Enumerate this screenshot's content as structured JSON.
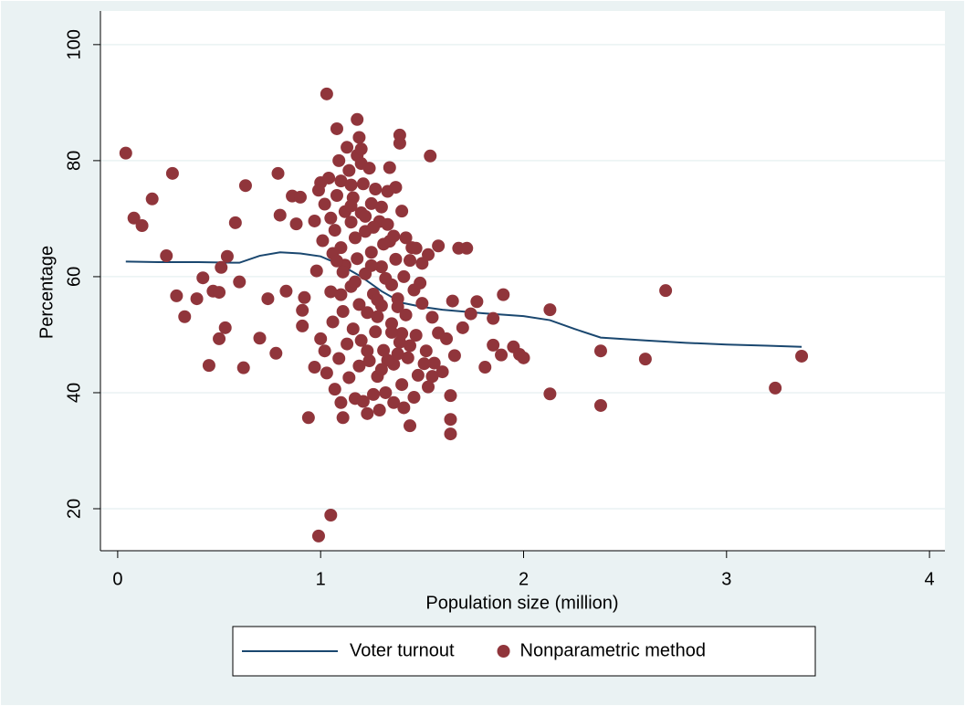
{
  "chart_data": {
    "type": "scatter",
    "xlabel": "Population size (million)",
    "ylabel": "Percentage",
    "xlim": [
      -0.085,
      4.076
    ],
    "ylim": [
      12.76,
      105.8
    ],
    "xticks": [
      0,
      1,
      2,
      3,
      4
    ],
    "yticks": [
      20,
      40,
      60,
      80,
      100
    ],
    "grid": true,
    "legend": "bottom",
    "series": [
      {
        "name": "Voter turnout",
        "type": "line",
        "color": "#1a476f",
        "x": [
          0.04,
          0.2,
          0.4,
          0.6,
          0.7,
          0.8,
          0.9,
          1.0,
          1.1,
          1.2,
          1.3,
          1.4,
          1.5,
          1.6,
          1.8,
          2.0,
          2.13,
          2.25,
          2.38,
          2.6,
          2.8,
          3.0,
          3.2,
          3.37
        ],
        "values": [
          62.6,
          62.5,
          62.5,
          62.4,
          63.6,
          64.2,
          64.0,
          63.5,
          62,
          60,
          57.5,
          55.5,
          54.8,
          54.3,
          53.7,
          53.2,
          52.5,
          51,
          49.5,
          49,
          48.6,
          48.3,
          48.1,
          47.9
        ]
      },
      {
        "name": "Nonparametric method",
        "type": "scatter",
        "color": "#90353b",
        "x": [
          0.04,
          0.08,
          0.12,
          0.17,
          0.27,
          0.24,
          0.29,
          0.33,
          0.39,
          0.42,
          0.45,
          0.47,
          0.5,
          0.5,
          0.51,
          0.53,
          0.54,
          0.58,
          0.6,
          0.62,
          0.63,
          0.7,
          0.74,
          0.78,
          0.79,
          0.8,
          0.83,
          0.86,
          0.88,
          0.9,
          0.91,
          0.91,
          0.92,
          0.94,
          0.97,
          0.99,
          1.05,
          1.03,
          1.08,
          1.18,
          1.39,
          1.39,
          1.54,
          1.68,
          1.72,
          1.77,
          1.9,
          1.85,
          1.85,
          1.89,
          1.81,
          1.95,
          1.98,
          2.0,
          2.13,
          2.13,
          2.38,
          2.38,
          2.6,
          2.7,
          3.24,
          3.37,
          1.64,
          1.64,
          1.64,
          1.44,
          1.11,
          1.1,
          1.0,
          1.02,
          1.05,
          1.07,
          1.08,
          1.1,
          1.1,
          1.12,
          1.12,
          1.14,
          1.15,
          1.15,
          1.16,
          1.17,
          1.18,
          1.18,
          1.19,
          1.2,
          1.2,
          1.21,
          1.22,
          1.22,
          1.23,
          1.24,
          1.25,
          1.25,
          1.26,
          1.27,
          1.28,
          1.29,
          1.3,
          1.3,
          1.31,
          1.32,
          1.33,
          1.34,
          1.35,
          1.35,
          1.36,
          1.37,
          1.38,
          1.39,
          1.4,
          1.41,
          1.42,
          1.43,
          1.45,
          1.46,
          1.47,
          1.48,
          1.5,
          1.5,
          1.52,
          1.53,
          1.55,
          1.56,
          1.58,
          1.58,
          1.6,
          1.62,
          1.65,
          1.66,
          1.7,
          1.74,
          0.98,
          1.0,
          1.02,
          1.03,
          1.05,
          1.06,
          1.07,
          1.09,
          1.11,
          1.13,
          1.14,
          1.16,
          1.17,
          1.19,
          1.21,
          1.23,
          1.26,
          1.28,
          1.29,
          1.32,
          1.33,
          1.36,
          1.38,
          1.4,
          1.41,
          1.44,
          1.46,
          1.49,
          1.51,
          1.53,
          1.55,
          0.97,
          0.99,
          1.01,
          1.04,
          1.06,
          1.09,
          1.11,
          1.13,
          1.15,
          1.17,
          1.19,
          1.2,
          1.22,
          1.24,
          1.26,
          1.27,
          1.3,
          1.31,
          1.33,
          1.36,
          1.37,
          1.4,
          1.42,
          1.44,
          1.47,
          1.34,
          1.2,
          1.15,
          1.25,
          1.28,
          1.35,
          1.1,
          1.08,
          1.23,
          1.3,
          1.38
        ],
        "values": [
          81.3,
          70.1,
          68.8,
          73.4,
          77.8,
          63.6,
          56.7,
          53.1,
          56.2,
          59.8,
          44.7,
          57.5,
          57.3,
          49.3,
          61.6,
          51.2,
          63.5,
          69.3,
          59.1,
          44.3,
          75.7,
          49.4,
          56.2,
          46.8,
          77.8,
          70.6,
          57.5,
          73.9,
          69.1,
          73.7,
          54.2,
          51.5,
          56.4,
          35.7,
          44.4,
          15.3,
          18.9,
          91.5,
          85.5,
          87.1,
          84.4,
          83.0,
          80.8,
          64.9,
          64.9,
          55.7,
          56.9,
          52.8,
          48.2,
          46.5,
          44.4,
          47.9,
          46.6,
          46.0,
          54.3,
          39.8,
          47.2,
          37.8,
          45.8,
          57.6,
          40.8,
          46.3,
          39.5,
          35.4,
          32.9,
          34.3,
          35.7,
          38.3,
          76.2,
          72.5,
          70.1,
          68.0,
          74.0,
          76.5,
          65.0,
          71.2,
          62.0,
          78.3,
          69.4,
          58.3,
          73.6,
          66.7,
          80.9,
          63.1,
          55.2,
          71.0,
          49.0,
          76.0,
          67.8,
          60.5,
          53.8,
          45.5,
          72.6,
          64.2,
          57.0,
          50.5,
          42.8,
          69.5,
          61.7,
          55.0,
          47.3,
          40.0,
          74.7,
          66.1,
          58.6,
          51.9,
          44.9,
          63.0,
          56.2,
          48.7,
          41.4,
          60.0,
          53.4,
          46.0,
          65.0,
          57.7,
          49.9,
          43.0,
          62.3,
          55.4,
          47.2,
          41.0,
          53.0,
          45.1,
          65.3,
          50.3,
          43.6,
          49.3,
          55.8,
          46.4,
          51.2,
          53.6,
          61.0,
          49.3,
          47.2,
          43.4,
          57.4,
          52.2,
          40.6,
          45.9,
          54.0,
          48.4,
          42.6,
          51.0,
          39.0,
          44.6,
          38.5,
          36.4,
          39.7,
          53.1,
          37.0,
          59.7,
          45.6,
          38.3,
          54.8,
          50.2,
          37.4,
          48.1,
          39.2,
          58.9,
          45.0,
          63.8,
          42.8,
          69.6,
          74.9,
          66.2,
          77.0,
          64.0,
          80.0,
          60.8,
          82.3,
          75.8,
          59.1,
          84.0,
          79.5,
          70.4,
          78.7,
          68.5,
          75.1,
          72.0,
          65.6,
          69.0,
          67.0,
          75.4,
          71.3,
          66.7,
          62.8,
          64.9,
          78.8,
          82.0,
          72.2,
          61.9,
          56.0,
          50.4,
          56.9,
          62.7,
          47.2,
          44.0,
          46.7
        ]
      }
    ]
  }
}
